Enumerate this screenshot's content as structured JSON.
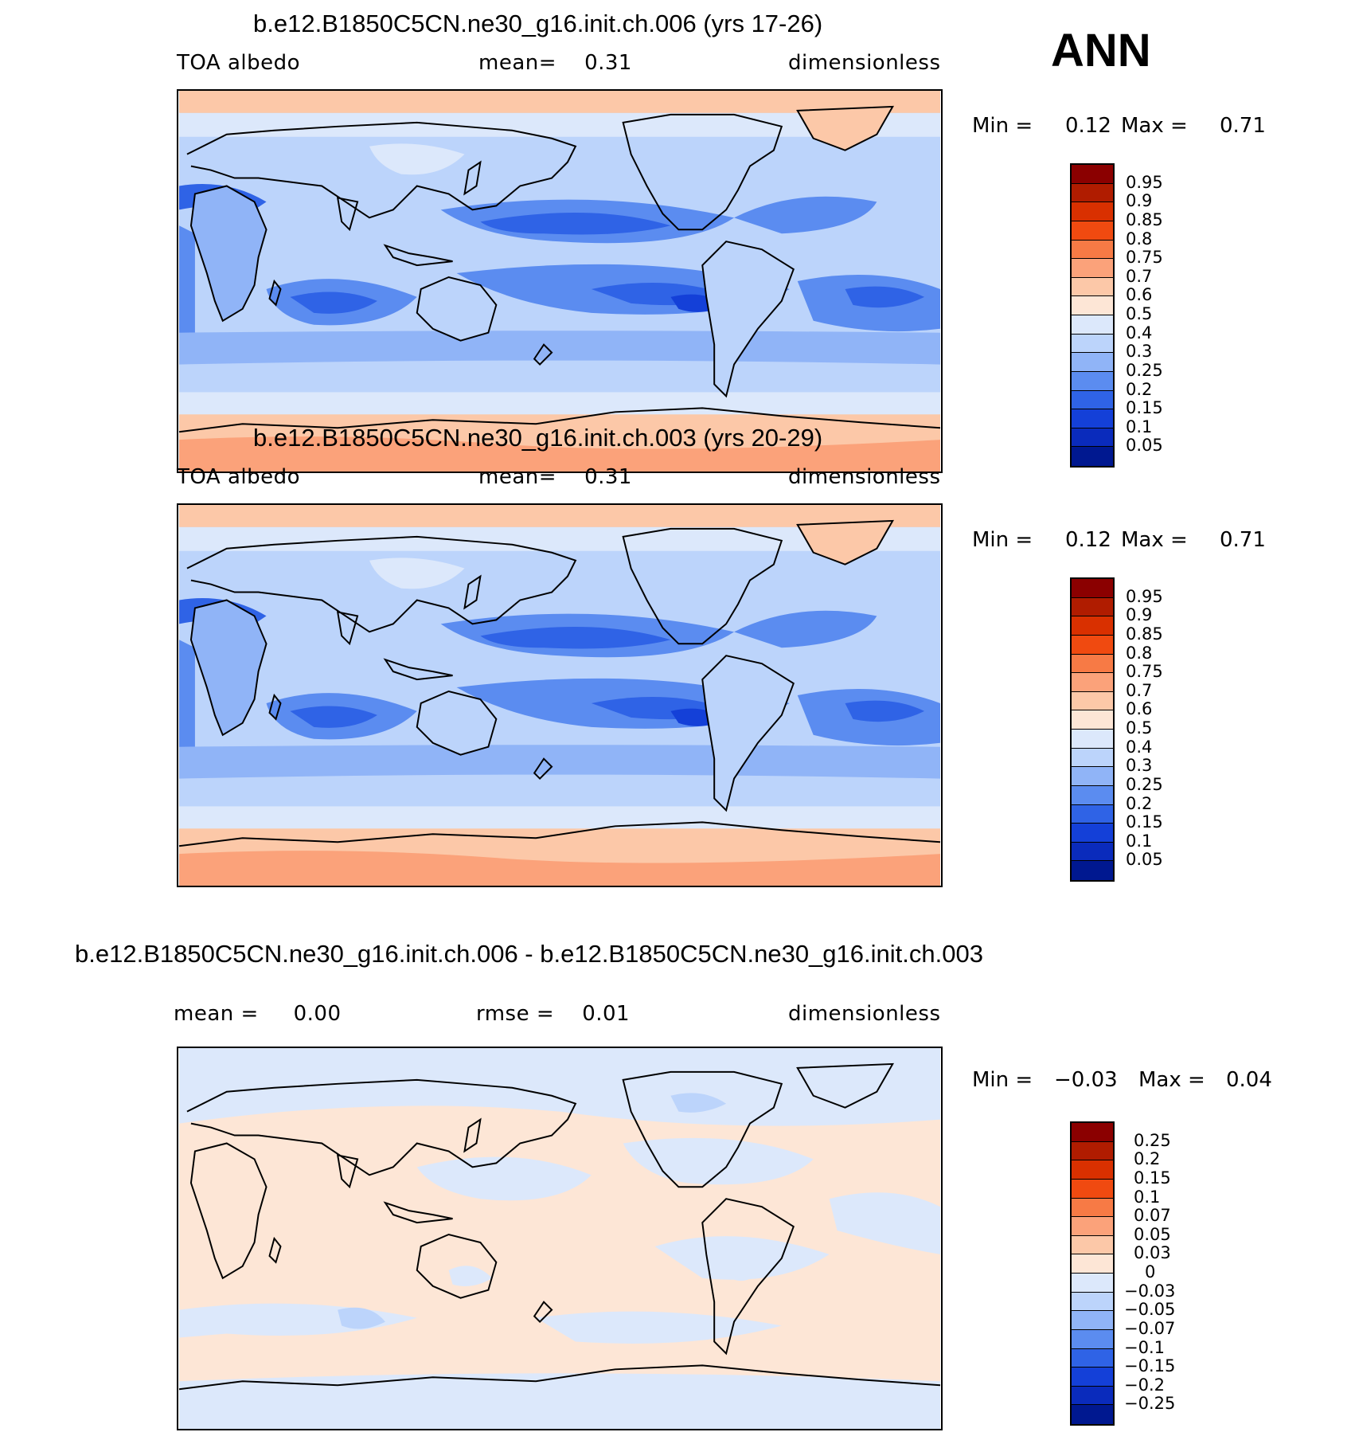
{
  "season": "ANN",
  "panels": [
    {
      "title": "b.e12.B1850C5CN.ne30_g16.init.ch.006 (yrs 17-26)",
      "left_label": "TOA albedo",
      "center_label": "mean=    0.31",
      "right_label": "dimensionless",
      "min_label": "Min =",
      "min_value": "0.12",
      "max_label": "Max =",
      "max_value": "0.71",
      "variant": "abs"
    },
    {
      "title": "b.e12.B1850C5CN.ne30_g16.init.ch.003 (yrs 20-29)",
      "left_label": "TOA albedo",
      "center_label": "mean=    0.31",
      "right_label": "dimensionless",
      "min_label": "Min =",
      "min_value": "0.12",
      "max_label": "Max =",
      "max_value": "0.71",
      "variant": "abs"
    },
    {
      "title": "b.e12.B1850C5CN.ne30_g16.init.ch.006 - b.e12.B1850C5CN.ne30_g16.init.ch.003",
      "left_label": "mean =     0.00",
      "center_label": "rmse =    0.01",
      "right_label": "dimensionless",
      "min_label": "Min =",
      "min_value": "−0.03",
      "max_label": "Max =",
      "max_value": "0.04",
      "variant": "diff"
    }
  ],
  "colorbars": {
    "abs": {
      "labels": [
        "0.95",
        "0.9",
        "0.85",
        "0.8",
        "0.75",
        "0.7",
        "0.6",
        "0.5",
        "0.4",
        "0.3",
        "0.25",
        "0.2",
        "0.15",
        "0.1",
        "0.05"
      ],
      "colors": [
        "#8b0000",
        "#b01c00",
        "#d93000",
        "#f04a10",
        "#f77a45",
        "#fba27a",
        "#fcc8a8",
        "#fde6d6",
        "#dce8fb",
        "#bcd4fb",
        "#90b4f7",
        "#5b8cf0",
        "#2f63e6",
        "#1440d8",
        "#0a2bbc",
        "#001890"
      ]
    },
    "diff": {
      "labels": [
        "0.25",
        "0.2",
        "0.15",
        "0.1",
        "0.07",
        "0.05",
        "0.03",
        "0",
        "−0.03",
        "−0.05",
        "−0.07",
        "−0.1",
        "−0.15",
        "−0.2",
        "−0.25"
      ],
      "colors": [
        "#8b0000",
        "#b01c00",
        "#d93000",
        "#f04a10",
        "#f77a45",
        "#fba27a",
        "#fcc8a8",
        "#fde6d6",
        "#dce8fb",
        "#bcd4fb",
        "#90b4f7",
        "#5b8cf0",
        "#2f63e6",
        "#1440d8",
        "#0a2bbc",
        "#001890"
      ]
    }
  }
}
